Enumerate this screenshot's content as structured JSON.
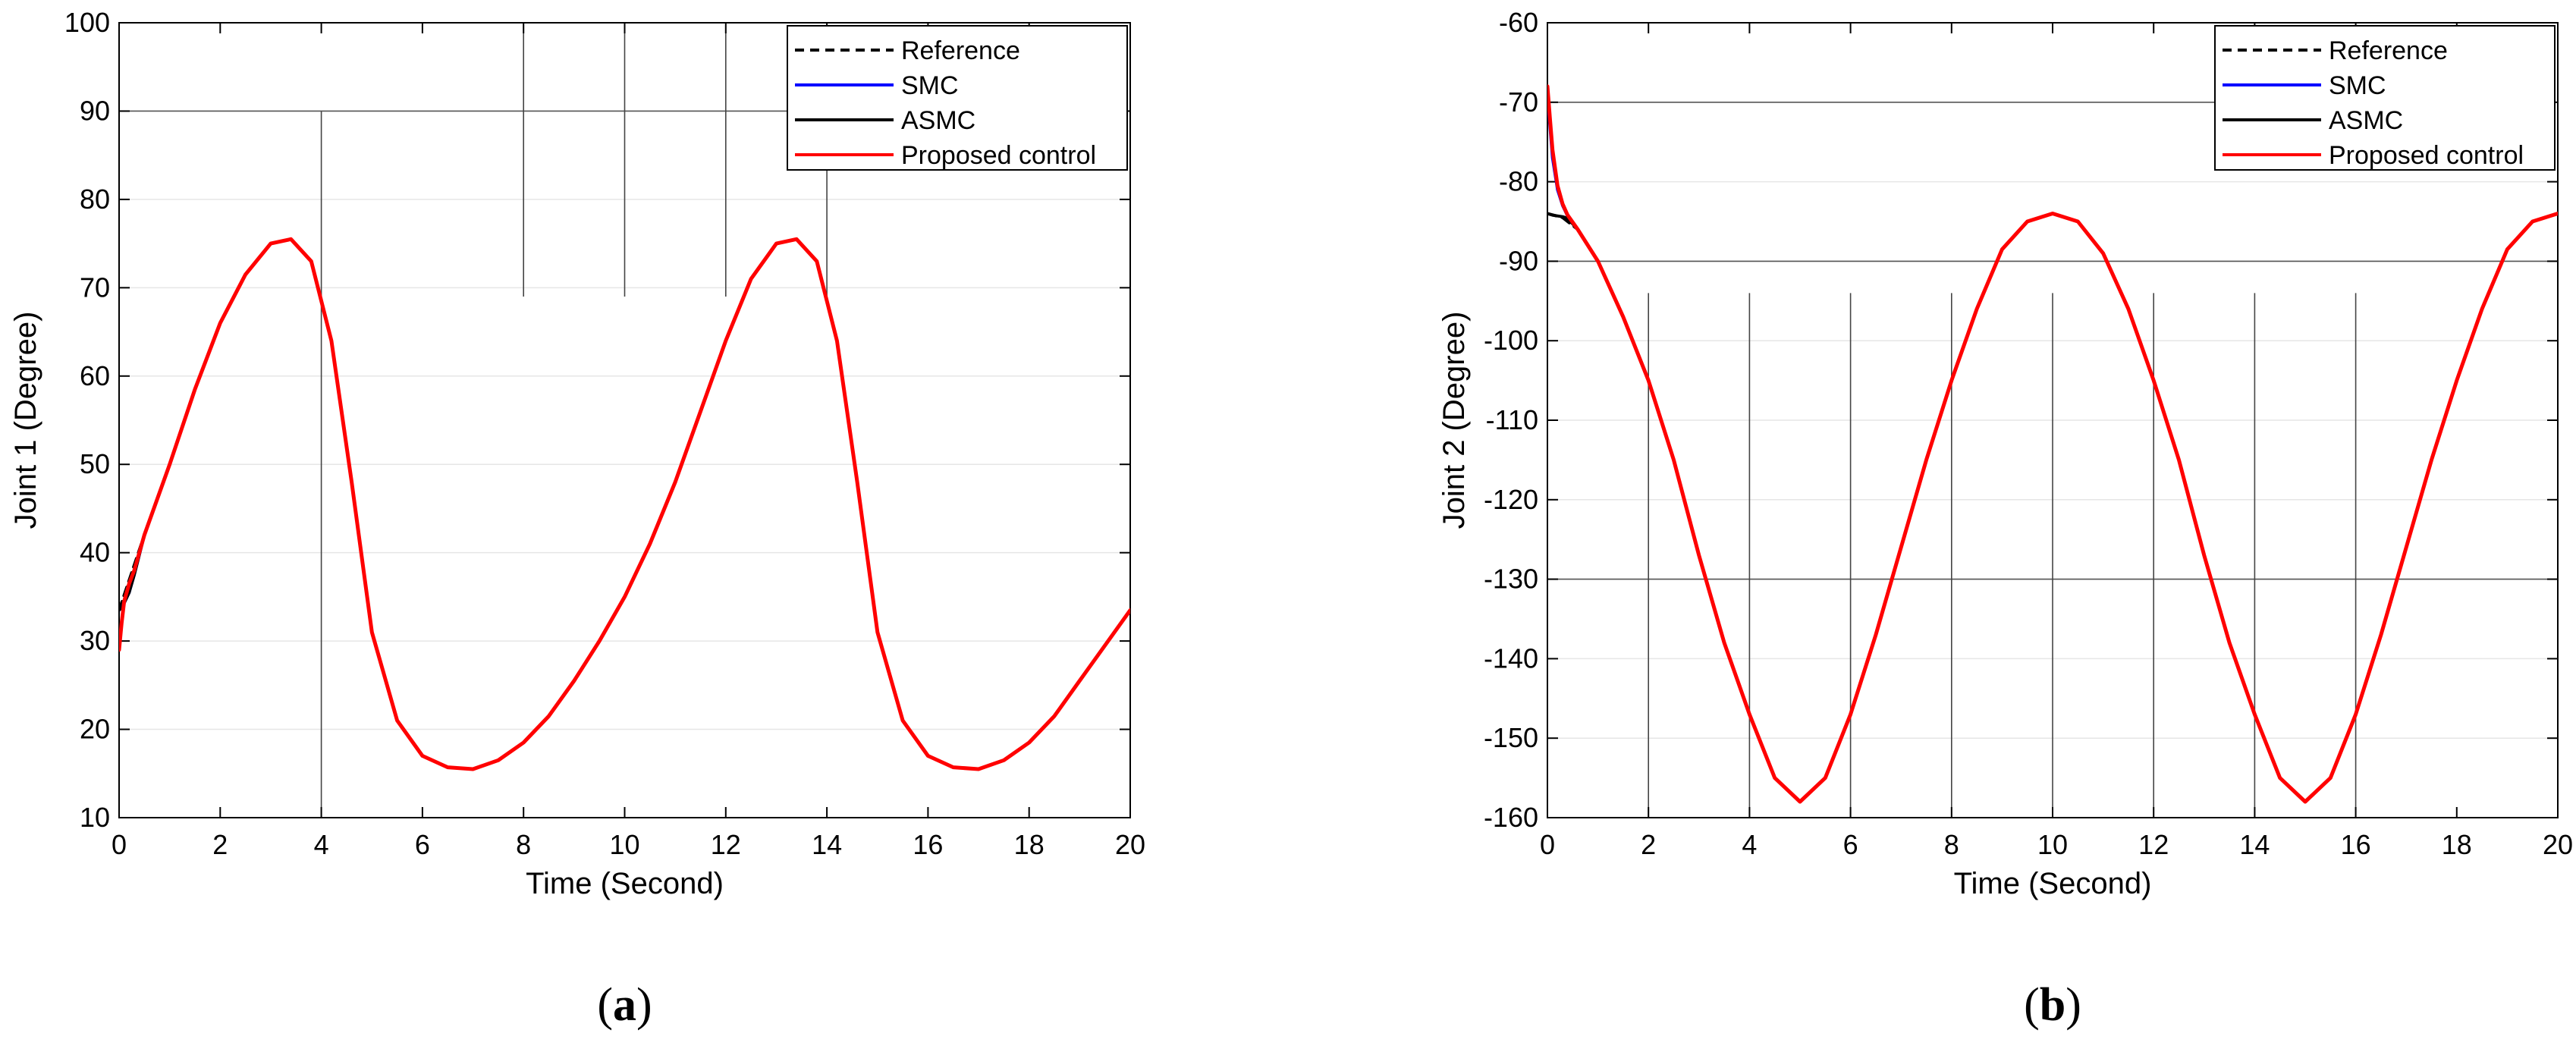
{
  "chart_data": [
    {
      "type": "line",
      "panel_label": "a",
      "xlabel": "Time (Second)",
      "ylabel": "Joint 1 (Degree)",
      "xlim": [
        0,
        20
      ],
      "ylim": [
        10,
        100
      ],
      "x_ticks": [
        0,
        2,
        4,
        6,
        8,
        10,
        12,
        14,
        16,
        18,
        20
      ],
      "y_ticks": [
        10,
        20,
        30,
        40,
        50,
        60,
        70,
        80,
        90,
        100
      ],
      "x_tick_labels": [
        "0",
        "2",
        "4",
        "6",
        "8",
        "10",
        "12",
        "14",
        "16",
        "18",
        "20"
      ],
      "y_tick_labels": [
        "10",
        "20",
        "30",
        "40",
        "50",
        "60",
        "70",
        "80",
        "90",
        "100"
      ],
      "legend_position": "top-right",
      "legend": [
        "Reference",
        "SMC",
        "ASMC",
        "Proposed control"
      ],
      "series": [
        {
          "name": "Reference",
          "style": "dashed",
          "color": "#000000",
          "x": [
            0,
            0.5,
            1,
            1.5,
            2,
            2.5,
            3,
            3.4,
            3.8,
            4.2,
            4.6,
            5,
            5.5,
            6,
            6.5,
            7,
            7.5,
            8,
            8.5,
            9,
            9.5,
            10,
            10.5,
            11,
            11.5,
            12,
            12.5,
            13,
            13.4,
            13.8,
            14.2,
            14.6,
            15,
            15.5,
            16,
            16.5,
            17,
            17.5,
            18,
            18.5,
            19,
            19.5,
            20
          ],
          "y": [
            33.5,
            42,
            50,
            58.5,
            66,
            71.5,
            75,
            75.5,
            73,
            64,
            48,
            31,
            21,
            17,
            15.7,
            15.5,
            16.5,
            18.5,
            21.5,
            25.5,
            30,
            35,
            41,
            48,
            56,
            64,
            71,
            75,
            75.5,
            73,
            64,
            48,
            31,
            21,
            17,
            15.7,
            15.5,
            16.5,
            18.5,
            21.5,
            25.5,
            29.5,
            33.5
          ]
        },
        {
          "name": "SMC",
          "style": "solid",
          "color": "#0000ff",
          "x": [
            0,
            0.05,
            0.1,
            0.2,
            0.3,
            0.5,
            1,
            1.5,
            2,
            2.5,
            3,
            3.4,
            3.8,
            4.2,
            4.6,
            5,
            5.5,
            6,
            6.5,
            7,
            7.5,
            8,
            8.5,
            9,
            9.5,
            10,
            10.5,
            11,
            11.5,
            12,
            12.5,
            13,
            13.4,
            13.8,
            14.2,
            14.6,
            15,
            15.5,
            16,
            16.5,
            17,
            17.5,
            18,
            18.5,
            19,
            19.5,
            20
          ],
          "y": [
            33.5,
            33.8,
            34.3,
            35.5,
            37.5,
            42,
            50,
            58.5,
            66,
            71.5,
            75,
            75.5,
            73,
            64,
            48,
            31,
            21,
            17,
            15.7,
            15.5,
            16.5,
            18.5,
            21.5,
            25.5,
            30,
            35,
            41,
            48,
            56,
            64,
            71,
            75,
            75.5,
            73,
            64,
            48,
            31,
            21,
            17,
            15.7,
            15.5,
            16.5,
            18.5,
            21.5,
            25.5,
            29.5,
            33.5
          ]
        },
        {
          "name": "ASMC",
          "style": "solid",
          "color": "#000000",
          "x": [
            0,
            0.05,
            0.1,
            0.2,
            0.3,
            0.5,
            1,
            1.5,
            2,
            2.5,
            3,
            3.4,
            3.8,
            4.2,
            4.6,
            5,
            5.5,
            6,
            6.5,
            7,
            7.5,
            8,
            8.5,
            9,
            9.5,
            10,
            10.5,
            11,
            11.5,
            12,
            12.5,
            13,
            13.4,
            13.8,
            14.2,
            14.6,
            15,
            15.5,
            16,
            16.5,
            17,
            17.5,
            18,
            18.5,
            19,
            19.5,
            20
          ],
          "y": [
            33.5,
            33.8,
            34.3,
            35.5,
            37.5,
            42,
            50,
            58.5,
            66,
            71.5,
            75,
            75.5,
            73,
            64,
            48,
            31,
            21,
            17,
            15.7,
            15.5,
            16.5,
            18.5,
            21.5,
            25.5,
            30,
            35,
            41,
            48,
            56,
            64,
            71,
            75,
            75.5,
            73,
            64,
            48,
            31,
            21,
            17,
            15.7,
            15.5,
            16.5,
            18.5,
            21.5,
            25.5,
            29.5,
            33.5
          ]
        },
        {
          "name": "Proposed control",
          "style": "solid",
          "color": "#ff0000",
          "x": [
            0,
            0.05,
            0.1,
            0.2,
            0.3,
            0.5,
            1,
            1.5,
            2,
            2.5,
            3,
            3.4,
            3.8,
            4.2,
            4.6,
            5,
            5.5,
            6,
            6.5,
            7,
            7.5,
            8,
            8.5,
            9,
            9.5,
            10,
            10.5,
            11,
            11.5,
            12,
            12.5,
            13,
            13.4,
            13.8,
            14.2,
            14.6,
            15,
            15.5,
            16,
            16.5,
            17,
            17.5,
            18,
            18.5,
            19,
            19.5,
            20
          ],
          "y": [
            29,
            32,
            34.5,
            36.5,
            38,
            42,
            50,
            58.5,
            66,
            71.5,
            75,
            75.5,
            73,
            64,
            48,
            31,
            21,
            17,
            15.7,
            15.5,
            16.5,
            18.5,
            21.5,
            25.5,
            30,
            35,
            41,
            48,
            56,
            64,
            71,
            75,
            75.5,
            73,
            64,
            48,
            31,
            21,
            17,
            15.7,
            15.5,
            16.5,
            18.5,
            21.5,
            25.5,
            29.5,
            33.5
          ]
        }
      ]
    },
    {
      "type": "line",
      "panel_label": "b",
      "xlabel": "Time (Second)",
      "ylabel": "Joint 2 (Degree)",
      "xlim": [
        0,
        20
      ],
      "ylim": [
        -160,
        -60
      ],
      "x_ticks": [
        0,
        2,
        4,
        6,
        8,
        10,
        12,
        14,
        16,
        18,
        20
      ],
      "y_ticks": [
        -160,
        -150,
        -140,
        -130,
        -120,
        -110,
        -100,
        -90,
        -80,
        -70,
        -60
      ],
      "x_tick_labels": [
        "0",
        "2",
        "4",
        "6",
        "8",
        "10",
        "12",
        "14",
        "16",
        "18",
        "20"
      ],
      "y_tick_labels": [
        "-160",
        "-150",
        "-140",
        "-130",
        "-120",
        "-110",
        "-100",
        "-90",
        "-80",
        "-70",
        "-60"
      ],
      "legend_position": "top-right",
      "legend": [
        "Reference",
        "SMC",
        "ASMC",
        "Proposed control"
      ],
      "series": [
        {
          "name": "Reference",
          "style": "dashed",
          "color": "#000000",
          "x": [
            0,
            0.3,
            0.6,
            1,
            1.5,
            2,
            2.5,
            3,
            3.5,
            4,
            4.5,
            5,
            5.5,
            6,
            6.5,
            7,
            7.5,
            8,
            8.5,
            9,
            9.5,
            10,
            10.5,
            11,
            11.5,
            12,
            12.5,
            13,
            13.5,
            14,
            14.5,
            15,
            15.5,
            16,
            16.5,
            17,
            17.5,
            18,
            18.5,
            19,
            19.5,
            20
          ],
          "y": [
            -84,
            -84.5,
            -86,
            -90,
            -97,
            -105,
            -115,
            -127,
            -138,
            -147,
            -155,
            -158,
            -155,
            -147,
            -137,
            -126,
            -115,
            -105,
            -96,
            -88.5,
            -85,
            -84,
            -85,
            -89,
            -96,
            -105,
            -115,
            -127,
            -138,
            -147,
            -155,
            -158,
            -155,
            -147,
            -137,
            -126,
            -115,
            -105,
            -96,
            -88.5,
            -85,
            -84
          ]
        },
        {
          "name": "SMC",
          "style": "solid",
          "color": "#0000ff",
          "x": [
            0,
            0.05,
            0.1,
            0.2,
            0.3,
            0.4,
            0.6,
            1,
            1.5,
            2,
            2.5,
            3,
            3.5,
            4,
            4.5,
            5,
            5.5,
            6,
            6.5,
            7,
            7.5,
            8,
            8.5,
            9,
            9.5,
            10,
            10.5,
            11,
            11.5,
            12,
            12.5,
            13,
            13.5,
            14,
            14.5,
            15,
            15.5,
            16,
            16.5,
            17,
            17.5,
            18,
            18.5,
            19,
            19.5,
            20
          ],
          "y": [
            -69,
            -73,
            -77,
            -81,
            -83,
            -84.3,
            -86,
            -90,
            -97,
            -105,
            -115,
            -127,
            -138,
            -147,
            -155,
            -158,
            -155,
            -147,
            -137,
            -126,
            -115,
            -105,
            -96,
            -88.5,
            -85,
            -84,
            -85,
            -89,
            -96,
            -105,
            -115,
            -127,
            -138,
            -147,
            -155,
            -158,
            -155,
            -147,
            -137,
            -126,
            -115,
            -105,
            -96,
            -88.5,
            -85,
            -84
          ]
        },
        {
          "name": "ASMC",
          "style": "solid",
          "color": "#000000",
          "x": [
            0,
            0.05,
            0.1,
            0.2,
            0.3,
            0.4,
            0.6,
            1,
            1.5,
            2,
            2.5,
            3,
            3.5,
            4,
            4.5,
            5,
            5.5,
            6,
            6.5,
            7,
            7.5,
            8,
            8.5,
            9,
            9.5,
            10,
            10.5,
            11,
            11.5,
            12,
            12.5,
            13,
            13.5,
            14,
            14.5,
            15,
            15.5,
            16,
            16.5,
            17,
            17.5,
            18,
            18.5,
            19,
            19.5,
            20
          ],
          "y": [
            -84,
            -84.1,
            -84.2,
            -84.3,
            -84.4,
            -84.6,
            -86,
            -90,
            -97,
            -105,
            -115,
            -127,
            -138,
            -147,
            -155,
            -158,
            -155,
            -147,
            -137,
            -126,
            -115,
            -105,
            -96,
            -88.5,
            -85,
            -84,
            -85,
            -89,
            -96,
            -105,
            -115,
            -127,
            -138,
            -147,
            -155,
            -158,
            -155,
            -147,
            -137,
            -126,
            -115,
            -105,
            -96,
            -88.5,
            -85,
            -84
          ]
        },
        {
          "name": "Proposed control",
          "style": "solid",
          "color": "#ff0000",
          "x": [
            0,
            0.05,
            0.1,
            0.2,
            0.3,
            0.4,
            0.6,
            1,
            1.5,
            2,
            2.5,
            3,
            3.5,
            4,
            4.5,
            5,
            5.5,
            6,
            6.5,
            7,
            7.5,
            8,
            8.5,
            9,
            9.5,
            10,
            10.5,
            11,
            11.5,
            12,
            12.5,
            13,
            13.5,
            14,
            14.5,
            15,
            15.5,
            16,
            16.5,
            17,
            17.5,
            18,
            18.5,
            19,
            19.5,
            20
          ],
          "y": [
            -68,
            -72,
            -76,
            -80.5,
            -82.8,
            -84.2,
            -86,
            -90,
            -97,
            -105,
            -115,
            -127,
            -138,
            -147,
            -155,
            -158,
            -155,
            -147,
            -137,
            -126,
            -115,
            -105,
            -96,
            -88.5,
            -85,
            -84,
            -85,
            -89,
            -96,
            -105,
            -115,
            -127,
            -138,
            -147,
            -155,
            -158,
            -155,
            -147,
            -137,
            -126,
            -115,
            -105,
            -96,
            -88.5,
            -85,
            -84
          ]
        }
      ]
    }
  ],
  "panels": [
    {
      "caption_label": "a",
      "caption_open": "(",
      "caption_close": ")"
    },
    {
      "caption_label": "b",
      "caption_open": "(",
      "caption_close": ")"
    }
  ]
}
